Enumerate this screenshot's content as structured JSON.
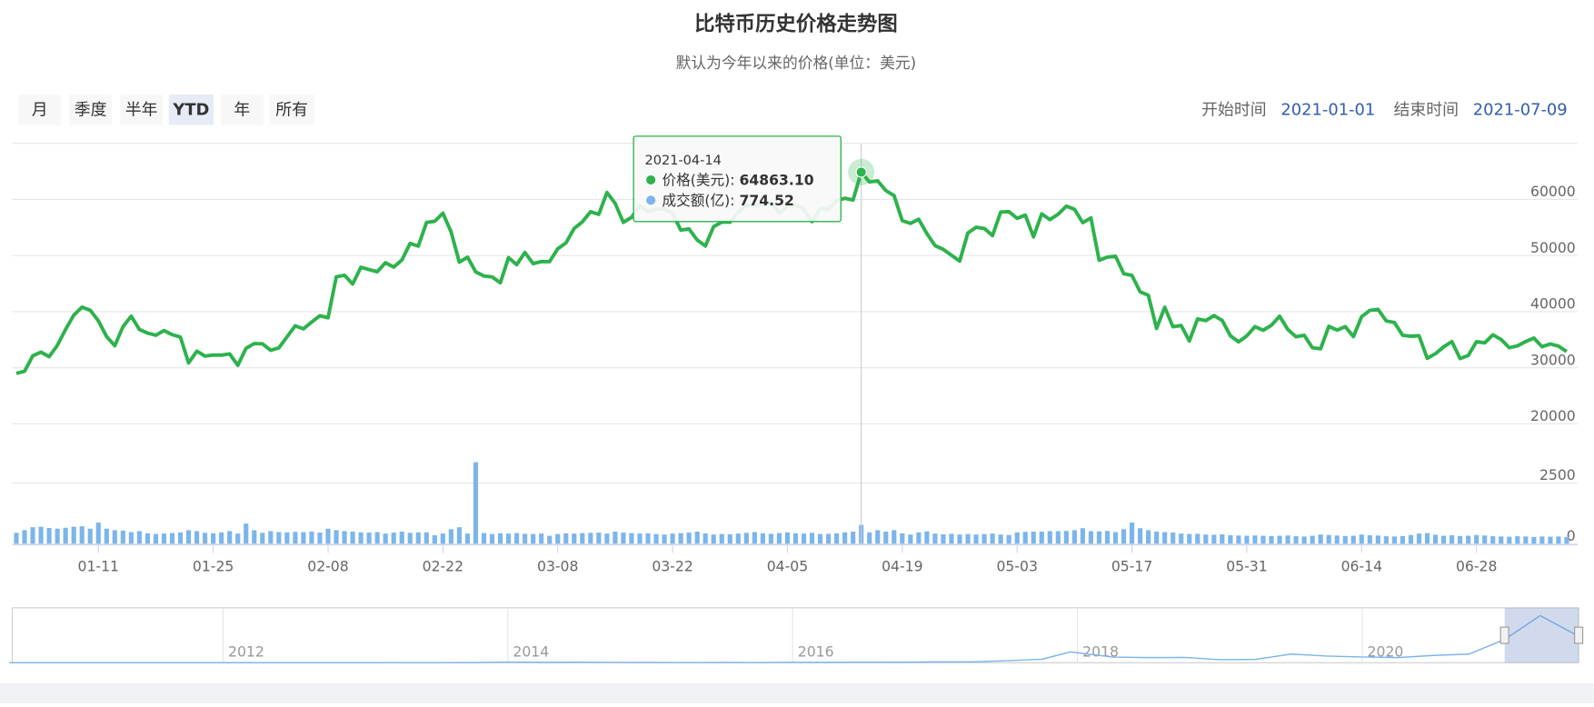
{
  "chart_data": {
    "type": "line",
    "title": "比特币历史价格走势图",
    "subtitle": "默认为今年以来的价格(单位：美元)",
    "range_selector": {
      "buttons": [
        "月",
        "季度",
        "半年",
        "YTD",
        "年",
        "所有"
      ],
      "selected": "YTD",
      "start_label": "开始时间",
      "start": "2021-01-01",
      "end_label": "结束时间",
      "end": "2021-07-09"
    },
    "x": [
      "2021-01-01",
      "2021-01-02",
      "2021-01-03",
      "2021-01-04",
      "2021-01-05",
      "2021-01-06",
      "2021-01-07",
      "2021-01-08",
      "2021-01-09",
      "2021-01-10",
      "2021-01-11",
      "2021-01-12",
      "2021-01-13",
      "2021-01-14",
      "2021-01-15",
      "2021-01-16",
      "2021-01-17",
      "2021-01-18",
      "2021-01-19",
      "2021-01-20",
      "2021-01-21",
      "2021-01-22",
      "2021-01-23",
      "2021-01-24",
      "2021-01-25",
      "2021-01-26",
      "2021-01-27",
      "2021-01-28",
      "2021-01-29",
      "2021-01-30",
      "2021-01-31",
      "2021-02-01",
      "2021-02-02",
      "2021-02-03",
      "2021-02-04",
      "2021-02-05",
      "2021-02-06",
      "2021-02-07",
      "2021-02-08",
      "2021-02-09",
      "2021-02-10",
      "2021-02-11",
      "2021-02-12",
      "2021-02-13",
      "2021-02-14",
      "2021-02-15",
      "2021-02-16",
      "2021-02-17",
      "2021-02-18",
      "2021-02-19",
      "2021-02-20",
      "2021-02-21",
      "2021-02-22",
      "2021-02-23",
      "2021-02-24",
      "2021-02-25",
      "2021-02-26",
      "2021-02-27",
      "2021-02-28",
      "2021-03-01",
      "2021-03-02",
      "2021-03-03",
      "2021-03-04",
      "2021-03-05",
      "2021-03-06",
      "2021-03-07",
      "2021-03-08",
      "2021-03-09",
      "2021-03-10",
      "2021-03-11",
      "2021-03-12",
      "2021-03-13",
      "2021-03-14",
      "2021-03-15",
      "2021-03-16",
      "2021-03-17",
      "2021-03-18",
      "2021-03-19",
      "2021-03-20",
      "2021-03-21",
      "2021-03-22",
      "2021-03-23",
      "2021-03-24",
      "2021-03-25",
      "2021-03-26",
      "2021-03-27",
      "2021-03-28",
      "2021-03-29",
      "2021-03-30",
      "2021-03-31",
      "2021-04-01",
      "2021-04-02",
      "2021-04-03",
      "2021-04-04",
      "2021-04-05",
      "2021-04-06",
      "2021-04-07",
      "2021-04-08",
      "2021-04-09",
      "2021-04-10",
      "2021-04-11",
      "2021-04-12",
      "2021-04-13",
      "2021-04-14",
      "2021-04-15",
      "2021-04-16",
      "2021-04-17",
      "2021-04-18",
      "2021-04-19",
      "2021-04-20",
      "2021-04-21",
      "2021-04-22",
      "2021-04-23",
      "2021-04-24",
      "2021-04-25",
      "2021-04-26",
      "2021-04-27",
      "2021-04-28",
      "2021-04-29",
      "2021-04-30",
      "2021-05-01",
      "2021-05-02",
      "2021-05-03",
      "2021-05-04",
      "2021-05-05",
      "2021-05-06",
      "2021-05-07",
      "2021-05-08",
      "2021-05-09",
      "2021-05-10",
      "2021-05-11",
      "2021-05-12",
      "2021-05-13",
      "2021-05-14",
      "2021-05-15",
      "2021-05-16",
      "2021-05-17",
      "2021-05-18",
      "2021-05-19",
      "2021-05-20",
      "2021-05-21",
      "2021-05-22",
      "2021-05-23",
      "2021-05-24",
      "2021-05-25",
      "2021-05-26",
      "2021-05-27",
      "2021-05-28",
      "2021-05-29",
      "2021-05-30",
      "2021-05-31",
      "2021-06-01",
      "2021-06-02",
      "2021-06-03",
      "2021-06-04",
      "2021-06-05",
      "2021-06-06",
      "2021-06-07",
      "2021-06-08",
      "2021-06-09",
      "2021-06-10",
      "2021-06-11",
      "2021-06-12",
      "2021-06-13",
      "2021-06-14",
      "2021-06-15",
      "2021-06-16",
      "2021-06-17",
      "2021-06-18",
      "2021-06-19",
      "2021-06-20",
      "2021-06-21",
      "2021-06-22",
      "2021-06-23",
      "2021-06-24",
      "2021-06-25",
      "2021-06-26",
      "2021-06-27",
      "2021-06-28",
      "2021-06-29",
      "2021-06-30",
      "2021-07-01",
      "2021-07-02",
      "2021-07-03",
      "2021-07-04",
      "2021-07-05",
      "2021-07-06",
      "2021-07-07",
      "2021-07-08",
      "2021-07-09"
    ],
    "xticks": [
      {
        "value": "2021-01-11",
        "label": "01-11"
      },
      {
        "value": "2021-01-25",
        "label": "01-25"
      },
      {
        "value": "2021-02-08",
        "label": "02-08"
      },
      {
        "value": "2021-02-22",
        "label": "02-22"
      },
      {
        "value": "2021-03-08",
        "label": "03-08"
      },
      {
        "value": "2021-03-22",
        "label": "03-22"
      },
      {
        "value": "2021-04-05",
        "label": "04-05"
      },
      {
        "value": "2021-04-19",
        "label": "04-19"
      },
      {
        "value": "2021-05-03",
        "label": "05-03"
      },
      {
        "value": "2021-05-17",
        "label": "05-17"
      },
      {
        "value": "2021-05-31",
        "label": "05-31"
      },
      {
        "value": "2021-06-14",
        "label": "06-14"
      },
      {
        "value": "2021-06-28",
        "label": "06-28"
      }
    ],
    "ylim": [
      20000,
      70000
    ],
    "yticks": [
      20000,
      30000,
      40000,
      50000,
      60000
    ],
    "y2lim": [
      0,
      4800
    ],
    "y2ticks": [
      0,
      2500
    ],
    "grid": true,
    "series": [
      {
        "name": "价格(美元)",
        "color": "#2db24c",
        "type": "line",
        "values": [
          28990,
          29374,
          32127,
          32782,
          31971,
          33992,
          36824,
          39371,
          40797,
          40254,
          38356,
          35566,
          33922,
          37316,
          39187,
          36825,
          36178,
          35792,
          36630,
          35891,
          35468,
          30850,
          32945,
          32078,
          32259,
          32254,
          32467,
          30432,
          33467,
          34316,
          34269,
          33114,
          33537,
          35510,
          37473,
          36926,
          38144,
          39266,
          38903,
          46196,
          46481,
          44918,
          47910,
          47504,
          47105,
          48717,
          47945,
          49199,
          52149,
          51679,
          55888,
          56099,
          57539,
          54207,
          48824,
          49705,
          47093,
          46339,
          46188,
          45137,
          49631,
          48378,
          50538,
          48561,
          48927,
          48912,
          51206,
          52246,
          54824,
          56008,
          57805,
          57332,
          61243,
          59302,
          55907,
          56804,
          58870,
          57858,
          58346,
          58313,
          57523,
          54529,
          54738,
          52774,
          51704,
          55137,
          55973,
          55950,
          57750,
          58917,
          58918,
          59095,
          59384,
          57603,
          58758,
          59057,
          58192,
          56048,
          58323,
          58245,
          59793,
          60204,
          59893,
          64863.1,
          63110,
          63314,
          61572,
          60683,
          56216,
          55724,
          56473,
          53906,
          51763,
          51093,
          50050,
          49004,
          54021,
          55033,
          54824,
          53555,
          57750,
          57828,
          56631,
          57200,
          53333,
          57424,
          56396,
          57356,
          58803,
          58232,
          55859,
          56704,
          49150,
          49716,
          49880,
          46760,
          46456,
          43537,
          42909,
          37002,
          40782,
          37304,
          37536,
          34770,
          38705,
          38402,
          39295,
          38436,
          35697,
          34617,
          35678,
          37332,
          36684,
          37575,
          39187,
          36825,
          35520,
          35796,
          33552,
          33380,
          37389,
          36702,
          37334,
          35552,
          39097,
          40218,
          40406,
          38347,
          38053,
          35787,
          35615,
          35698,
          31676,
          32505,
          33723,
          34662,
          31637,
          32186,
          34649,
          34434,
          35867,
          35040,
          33572,
          33897,
          34668,
          35287,
          33746,
          34235,
          33855,
          32877
        ]
      },
      {
        "name": "成交额(亿)",
        "color": "#7cb5ec",
        "type": "bar",
        "axis": "y2",
        "values": [
          450,
          560,
          680,
          700,
          650,
          620,
          660,
          700,
          720,
          620,
          870,
          620,
          560,
          540,
          480,
          520,
          430,
          400,
          420,
          440,
          470,
          560,
          520,
          450,
          430,
          470,
          520,
          420,
          830,
          560,
          450,
          520,
          480,
          470,
          490,
          480,
          500,
          460,
          620,
          560,
          520,
          500,
          470,
          460,
          480,
          420,
          460,
          500,
          450,
          470,
          470,
          350,
          420,
          600,
          680,
          420,
          3350,
          440,
          400,
          430,
          420,
          440,
          410,
          400,
          420,
          330,
          400,
          430,
          420,
          440,
          450,
          460,
          420,
          500,
          460,
          440,
          420,
          430,
          400,
          380,
          420,
          440,
          460,
          500,
          430,
          380,
          400,
          390,
          420,
          450,
          480,
          430,
          410,
          440,
          470,
          430,
          420,
          450,
          400,
          410,
          430,
          470,
          500,
          774.52,
          470,
          560,
          500,
          560,
          430,
          380,
          470,
          510,
          420,
          390,
          410,
          380,
          400,
          380,
          400,
          420,
          380,
          360,
          470,
          490,
          500,
          500,
          520,
          520,
          530,
          560,
          640,
          520,
          510,
          530,
          480,
          600,
          870,
          640,
          560,
          500,
          480,
          460,
          420,
          400,
          410,
          380,
          370,
          390,
          350,
          340,
          330,
          340,
          330,
          320,
          330,
          340,
          310,
          300,
          330,
          380,
          360,
          340,
          320,
          330,
          380,
          350,
          340,
          310,
          300,
          320,
          360,
          420,
          440,
          370,
          330,
          350,
          320,
          330,
          360,
          340,
          310,
          300,
          290,
          310,
          300,
          280,
          300,
          290,
          300,
          280
        ]
      }
    ],
    "tooltip": {
      "x": "2021-04-14",
      "value_labels": [
        "64863.10",
        "774.52"
      ]
    },
    "navigator": {
      "color": "#7cb5ec",
      "xlim": [
        2010.52,
        2021.52
      ],
      "ylim": [
        0,
        66000
      ],
      "xticks": [
        2012,
        2014,
        2016,
        2018,
        2020
      ],
      "x": [
        2010.5,
        2010.75,
        2011,
        2011.25,
        2011.5,
        2011.75,
        2012,
        2012.25,
        2012.5,
        2012.75,
        2013,
        2013.25,
        2013.5,
        2013.75,
        2014,
        2014.25,
        2014.5,
        2014.75,
        2015,
        2015.25,
        2015.5,
        2015.75,
        2016,
        2016.25,
        2016.5,
        2016.75,
        2017,
        2017.25,
        2017.5,
        2017.75,
        2017.95,
        2018.25,
        2018.5,
        2018.75,
        2019,
        2019.25,
        2019.5,
        2019.75,
        2020,
        2020.25,
        2020.5,
        2020.75,
        2021,
        2021.25,
        2021.5
      ],
      "values": [
        0.1,
        0.3,
        0.3,
        1,
        15,
        5,
        5,
        5,
        7,
        12,
        13,
        100,
        90,
        150,
        800,
        450,
        600,
        380,
        320,
        240,
        260,
        240,
        430,
        420,
        670,
        610,
        970,
        1080,
        2500,
        4300,
        13500,
        7000,
        6400,
        6600,
        3800,
        4100,
        10800,
        8300,
        7200,
        6400,
        9100,
        10800,
        29000,
        58800,
        35000
      ],
      "selected": [
        2021.0,
        2021.52
      ]
    }
  }
}
